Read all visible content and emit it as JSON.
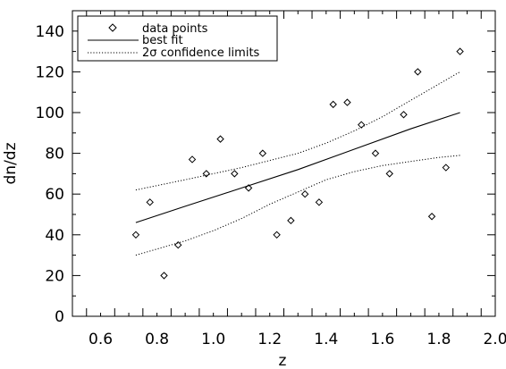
{
  "chart_data": {
    "type": "scatter",
    "xlabel": "z",
    "ylabel": "dn/dz",
    "xlim": [
      0.5,
      2.0
    ],
    "ylim": [
      0,
      150
    ],
    "x_ticks": [
      "0.6",
      "0.8",
      "1.0",
      "1.2",
      "1.4",
      "1.6",
      "1.8",
      "2.0"
    ],
    "y_ticks": [
      "0",
      "20",
      "40",
      "60",
      "80",
      "100",
      "120",
      "140"
    ],
    "grid": false,
    "legend_position": "top-left",
    "legend": {
      "points": "data points",
      "fit": "best fit",
      "confidence": "2σ confidence limits"
    },
    "data_points": [
      {
        "x": 0.725,
        "y": 40
      },
      {
        "x": 0.775,
        "y": 56
      },
      {
        "x": 0.825,
        "y": 20
      },
      {
        "x": 0.875,
        "y": 35
      },
      {
        "x": 0.925,
        "y": 77
      },
      {
        "x": 0.975,
        "y": 70
      },
      {
        "x": 1.025,
        "y": 87
      },
      {
        "x": 1.075,
        "y": 70
      },
      {
        "x": 1.125,
        "y": 63
      },
      {
        "x": 1.175,
        "y": 80
      },
      {
        "x": 1.225,
        "y": 40
      },
      {
        "x": 1.275,
        "y": 47
      },
      {
        "x": 1.325,
        "y": 60
      },
      {
        "x": 1.375,
        "y": 56
      },
      {
        "x": 1.425,
        "y": 104
      },
      {
        "x": 1.475,
        "y": 105
      },
      {
        "x": 1.525,
        "y": 94
      },
      {
        "x": 1.575,
        "y": 80
      },
      {
        "x": 1.625,
        "y": 70
      },
      {
        "x": 1.675,
        "y": 99
      },
      {
        "x": 1.725,
        "y": 120
      },
      {
        "x": 1.775,
        "y": 49
      },
      {
        "x": 1.825,
        "y": 73
      },
      {
        "x": 1.875,
        "y": 130
      }
    ],
    "best_fit": {
      "x": [
        0.725,
        0.9,
        1.1,
        1.3,
        1.5,
        1.7,
        1.875
      ],
      "y": [
        46,
        54,
        63,
        72,
        82,
        92,
        100
      ]
    },
    "upper_limit": {
      "x": [
        0.725,
        0.9,
        1.1,
        1.3,
        1.4,
        1.5,
        1.6,
        1.7,
        1.8,
        1.875
      ],
      "y": [
        62,
        67,
        73,
        80,
        85,
        91,
        98,
        106,
        114,
        120
      ]
    },
    "lower_limit": {
      "x": [
        0.725,
        0.9,
        1.0,
        1.1,
        1.2,
        1.3,
        1.4,
        1.5,
        1.6,
        1.7,
        1.8,
        1.875
      ],
      "y": [
        30,
        37,
        42,
        48,
        55,
        61,
        67,
        71,
        74,
        76,
        78,
        79
      ]
    }
  }
}
